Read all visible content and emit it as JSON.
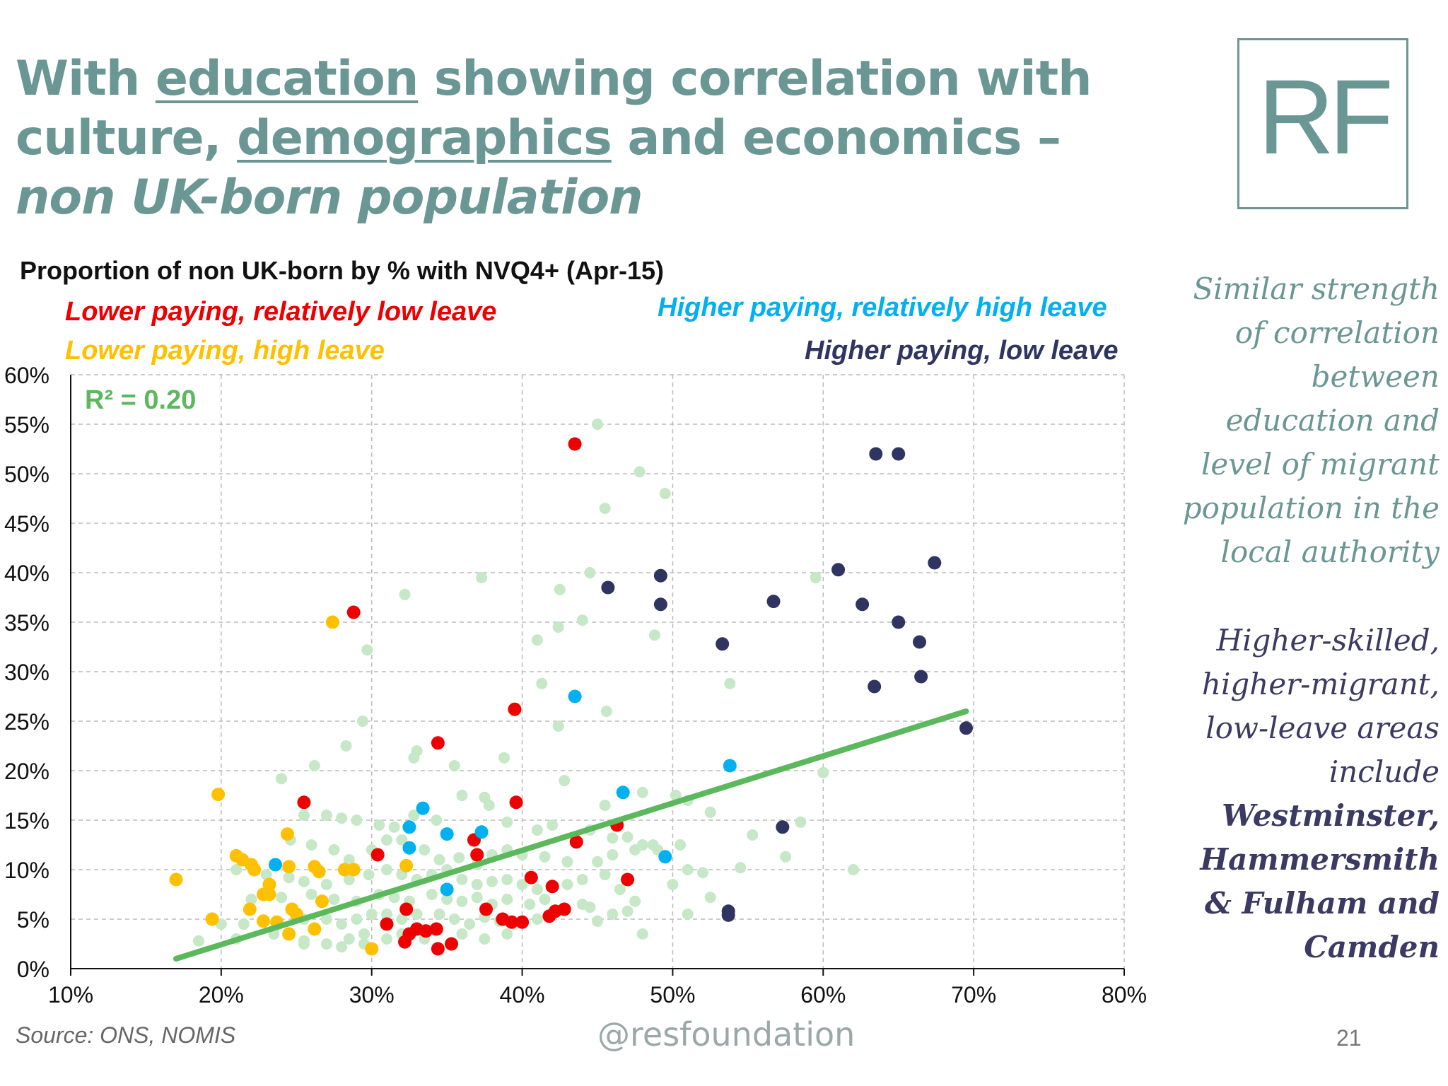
{
  "slide": {
    "title_part1": "With ",
    "title_u1": "education",
    "title_part2": " showing correlation with culture, ",
    "title_u2": "demographics",
    "title_part3": " and economics – ",
    "title_italic": "non UK-born population",
    "logo_text": "RF",
    "side_note_1": "Similar strength of correlation between education and level of migrant population in the local authority",
    "side_note_2_intro": "Higher-skilled, higher-migrant, low-leave areas include",
    "side_note_2_bold": "Westminster, Hammersmith & Fulham and Camden",
    "source": "Source: ONS, NOMIS",
    "handle": "@resfoundation",
    "page_number": "21"
  },
  "colors": {
    "teal": "#6a9694",
    "lower_low_leave": "#ee0000",
    "lower_high_leave": "#ffc000",
    "higher_high_leave": "#00b0f0",
    "higher_low_leave": "#2f3560",
    "other": "#c6e8c6",
    "trend": "#5cb85c"
  },
  "chart_data": {
    "type": "scatter",
    "title": "Proportion of non UK-born by % with NVQ4+ (Apr-15)",
    "xlim": [
      0.1,
      0.8
    ],
    "ylim": [
      0,
      0.6
    ],
    "x_ticks": [
      "10%",
      "20%",
      "30%",
      "40%",
      "50%",
      "60%",
      "70%",
      "80%"
    ],
    "y_ticks": [
      "0%",
      "5%",
      "10%",
      "15%",
      "20%",
      "25%",
      "30%",
      "35%",
      "40%",
      "45%",
      "50%",
      "55%",
      "60%"
    ],
    "grid": true,
    "r2_label": "R² = 0.20",
    "trendline": {
      "x": [
        0.17,
        0.695
      ],
      "y": [
        0.01,
        0.26
      ]
    },
    "series": [
      {
        "name": "Lower paying, relatively low leave",
        "color": "#ee0000",
        "points": [
          [
            0.435,
            0.53
          ],
          [
            0.288,
            0.36
          ],
          [
            0.395,
            0.262
          ],
          [
            0.344,
            0.228
          ],
          [
            0.255,
            0.168
          ],
          [
            0.396,
            0.168
          ],
          [
            0.463,
            0.145
          ],
          [
            0.436,
            0.128
          ],
          [
            0.368,
            0.13
          ],
          [
            0.37,
            0.115
          ],
          [
            0.304,
            0.115
          ],
          [
            0.406,
            0.092
          ],
          [
            0.47,
            0.09
          ],
          [
            0.42,
            0.083
          ],
          [
            0.323,
            0.06
          ],
          [
            0.376,
            0.06
          ],
          [
            0.422,
            0.058
          ],
          [
            0.428,
            0.06
          ],
          [
            0.418,
            0.053
          ],
          [
            0.387,
            0.05
          ],
          [
            0.393,
            0.047
          ],
          [
            0.4,
            0.047
          ],
          [
            0.31,
            0.045
          ],
          [
            0.33,
            0.04
          ],
          [
            0.325,
            0.035
          ],
          [
            0.336,
            0.038
          ],
          [
            0.343,
            0.04
          ],
          [
            0.322,
            0.027
          ],
          [
            0.353,
            0.025
          ],
          [
            0.344,
            0.02
          ]
        ]
      },
      {
        "name": "Lower paying, high leave",
        "color": "#ffc000",
        "points": [
          [
            0.198,
            0.176
          ],
          [
            0.274,
            0.35
          ],
          [
            0.17,
            0.09
          ],
          [
            0.21,
            0.114
          ],
          [
            0.214,
            0.11
          ],
          [
            0.22,
            0.105
          ],
          [
            0.222,
            0.1
          ],
          [
            0.244,
            0.136
          ],
          [
            0.245,
            0.103
          ],
          [
            0.262,
            0.103
          ],
          [
            0.265,
            0.098
          ],
          [
            0.282,
            0.1
          ],
          [
            0.288,
            0.1
          ],
          [
            0.232,
            0.085
          ],
          [
            0.228,
            0.075
          ],
          [
            0.232,
            0.075
          ],
          [
            0.267,
            0.068
          ],
          [
            0.219,
            0.06
          ],
          [
            0.247,
            0.06
          ],
          [
            0.25,
            0.055
          ],
          [
            0.194,
            0.05
          ],
          [
            0.228,
            0.048
          ],
          [
            0.237,
            0.047
          ],
          [
            0.245,
            0.035
          ],
          [
            0.262,
            0.04
          ],
          [
            0.3,
            0.02
          ],
          [
            0.323,
            0.104
          ]
        ]
      },
      {
        "name": "Higher paying, relatively high leave",
        "color": "#00b0f0",
        "points": [
          [
            0.435,
            0.275
          ],
          [
            0.538,
            0.205
          ],
          [
            0.467,
            0.178
          ],
          [
            0.334,
            0.162
          ],
          [
            0.325,
            0.143
          ],
          [
            0.35,
            0.136
          ],
          [
            0.373,
            0.138
          ],
          [
            0.325,
            0.122
          ],
          [
            0.495,
            0.113
          ],
          [
            0.236,
            0.105
          ],
          [
            0.35,
            0.08
          ]
        ]
      },
      {
        "name": "Higher paying, low leave",
        "color": "#2f3560",
        "points": [
          [
            0.635,
            0.52
          ],
          [
            0.65,
            0.52
          ],
          [
            0.674,
            0.41
          ],
          [
            0.61,
            0.403
          ],
          [
            0.457,
            0.385
          ],
          [
            0.492,
            0.397
          ],
          [
            0.492,
            0.368
          ],
          [
            0.567,
            0.371
          ],
          [
            0.626,
            0.368
          ],
          [
            0.65,
            0.35
          ],
          [
            0.664,
            0.33
          ],
          [
            0.533,
            0.328
          ],
          [
            0.634,
            0.285
          ],
          [
            0.665,
            0.295
          ],
          [
            0.695,
            0.243
          ],
          [
            0.573,
            0.143
          ],
          [
            0.537,
            0.058
          ],
          [
            0.537,
            0.054
          ]
        ]
      },
      {
        "name": "",
        "color": "#c6e8c6",
        "points": [
          [
            0.45,
            0.55
          ],
          [
            0.478,
            0.502
          ],
          [
            0.495,
            0.48
          ],
          [
            0.455,
            0.465
          ],
          [
            0.445,
            0.4
          ],
          [
            0.373,
            0.395
          ],
          [
            0.322,
            0.378
          ],
          [
            0.425,
            0.383
          ],
          [
            0.595,
            0.395
          ],
          [
            0.44,
            0.352
          ],
          [
            0.424,
            0.345
          ],
          [
            0.488,
            0.337
          ],
          [
            0.41,
            0.332
          ],
          [
            0.297,
            0.322
          ],
          [
            0.413,
            0.288
          ],
          [
            0.538,
            0.288
          ],
          [
            0.456,
            0.26
          ],
          [
            0.294,
            0.25
          ],
          [
            0.424,
            0.245
          ],
          [
            0.283,
            0.225
          ],
          [
            0.388,
            0.213
          ],
          [
            0.328,
            0.213
          ],
          [
            0.33,
            0.22
          ],
          [
            0.355,
            0.205
          ],
          [
            0.262,
            0.205
          ],
          [
            0.24,
            0.192
          ],
          [
            0.428,
            0.19
          ],
          [
            0.6,
            0.198
          ],
          [
            0.36,
            0.175
          ],
          [
            0.375,
            0.173
          ],
          [
            0.378,
            0.165
          ],
          [
            0.455,
            0.165
          ],
          [
            0.48,
            0.178
          ],
          [
            0.502,
            0.175
          ],
          [
            0.51,
            0.17
          ],
          [
            0.525,
            0.158
          ],
          [
            0.255,
            0.155
          ],
          [
            0.27,
            0.155
          ],
          [
            0.28,
            0.152
          ],
          [
            0.29,
            0.15
          ],
          [
            0.305,
            0.145
          ],
          [
            0.315,
            0.143
          ],
          [
            0.328,
            0.155
          ],
          [
            0.343,
            0.15
          ],
          [
            0.39,
            0.148
          ],
          [
            0.41,
            0.14
          ],
          [
            0.42,
            0.145
          ],
          [
            0.445,
            0.14
          ],
          [
            0.46,
            0.132
          ],
          [
            0.47,
            0.133
          ],
          [
            0.48,
            0.125
          ],
          [
            0.49,
            0.12
          ],
          [
            0.505,
            0.125
          ],
          [
            0.553,
            0.135
          ],
          [
            0.585,
            0.148
          ],
          [
            0.246,
            0.13
          ],
          [
            0.26,
            0.125
          ],
          [
            0.275,
            0.12
          ],
          [
            0.285,
            0.11
          ],
          [
            0.3,
            0.12
          ],
          [
            0.31,
            0.13
          ],
          [
            0.32,
            0.13
          ],
          [
            0.335,
            0.12
          ],
          [
            0.345,
            0.11
          ],
          [
            0.358,
            0.112
          ],
          [
            0.37,
            0.105
          ],
          [
            0.38,
            0.115
          ],
          [
            0.39,
            0.12
          ],
          [
            0.4,
            0.115
          ],
          [
            0.415,
            0.113
          ],
          [
            0.43,
            0.108
          ],
          [
            0.45,
            0.108
          ],
          [
            0.46,
            0.115
          ],
          [
            0.475,
            0.12
          ],
          [
            0.487,
            0.125
          ],
          [
            0.51,
            0.1
          ],
          [
            0.52,
            0.097
          ],
          [
            0.545,
            0.102
          ],
          [
            0.575,
            0.113
          ],
          [
            0.62,
            0.1
          ],
          [
            0.21,
            0.1
          ],
          [
            0.23,
            0.095
          ],
          [
            0.245,
            0.092
          ],
          [
            0.255,
            0.088
          ],
          [
            0.27,
            0.085
          ],
          [
            0.285,
            0.09
          ],
          [
            0.298,
            0.095
          ],
          [
            0.31,
            0.1
          ],
          [
            0.32,
            0.095
          ],
          [
            0.33,
            0.09
          ],
          [
            0.34,
            0.095
          ],
          [
            0.35,
            0.1
          ],
          [
            0.36,
            0.09
          ],
          [
            0.37,
            0.085
          ],
          [
            0.38,
            0.088
          ],
          [
            0.39,
            0.09
          ],
          [
            0.4,
            0.085
          ],
          [
            0.41,
            0.08
          ],
          [
            0.43,
            0.085
          ],
          [
            0.44,
            0.09
          ],
          [
            0.455,
            0.095
          ],
          [
            0.465,
            0.08
          ],
          [
            0.475,
            0.068
          ],
          [
            0.5,
            0.085
          ],
          [
            0.525,
            0.072
          ],
          [
            0.22,
            0.07
          ],
          [
            0.24,
            0.072
          ],
          [
            0.26,
            0.075
          ],
          [
            0.275,
            0.07
          ],
          [
            0.29,
            0.068
          ],
          [
            0.305,
            0.075
          ],
          [
            0.315,
            0.072
          ],
          [
            0.325,
            0.068
          ],
          [
            0.34,
            0.075
          ],
          [
            0.35,
            0.07
          ],
          [
            0.36,
            0.068
          ],
          [
            0.37,
            0.072
          ],
          [
            0.38,
            0.065
          ],
          [
            0.39,
            0.07
          ],
          [
            0.405,
            0.065
          ],
          [
            0.415,
            0.07
          ],
          [
            0.44,
            0.065
          ],
          [
            0.445,
            0.062
          ],
          [
            0.46,
            0.055
          ],
          [
            0.47,
            0.058
          ],
          [
            0.51,
            0.055
          ],
          [
            0.2,
            0.045
          ],
          [
            0.215,
            0.045
          ],
          [
            0.255,
            0.05
          ],
          [
            0.27,
            0.05
          ],
          [
            0.28,
            0.045
          ],
          [
            0.29,
            0.05
          ],
          [
            0.3,
            0.055
          ],
          [
            0.31,
            0.055
          ],
          [
            0.32,
            0.05
          ],
          [
            0.33,
            0.055
          ],
          [
            0.345,
            0.055
          ],
          [
            0.355,
            0.05
          ],
          [
            0.365,
            0.045
          ],
          [
            0.375,
            0.052
          ],
          [
            0.385,
            0.048
          ],
          [
            0.395,
            0.045
          ],
          [
            0.41,
            0.05
          ],
          [
            0.45,
            0.048
          ],
          [
            0.185,
            0.028
          ],
          [
            0.21,
            0.03
          ],
          [
            0.235,
            0.035
          ],
          [
            0.255,
            0.028
          ],
          [
            0.27,
            0.025
          ],
          [
            0.285,
            0.03
          ],
          [
            0.295,
            0.035
          ],
          [
            0.31,
            0.03
          ],
          [
            0.32,
            0.035
          ],
          [
            0.335,
            0.03
          ],
          [
            0.36,
            0.035
          ],
          [
            0.375,
            0.03
          ],
          [
            0.39,
            0.035
          ],
          [
            0.48,
            0.035
          ],
          [
            0.255,
            0.025
          ],
          [
            0.28,
            0.022
          ],
          [
            0.295,
            0.025
          ]
        ]
      }
    ]
  }
}
